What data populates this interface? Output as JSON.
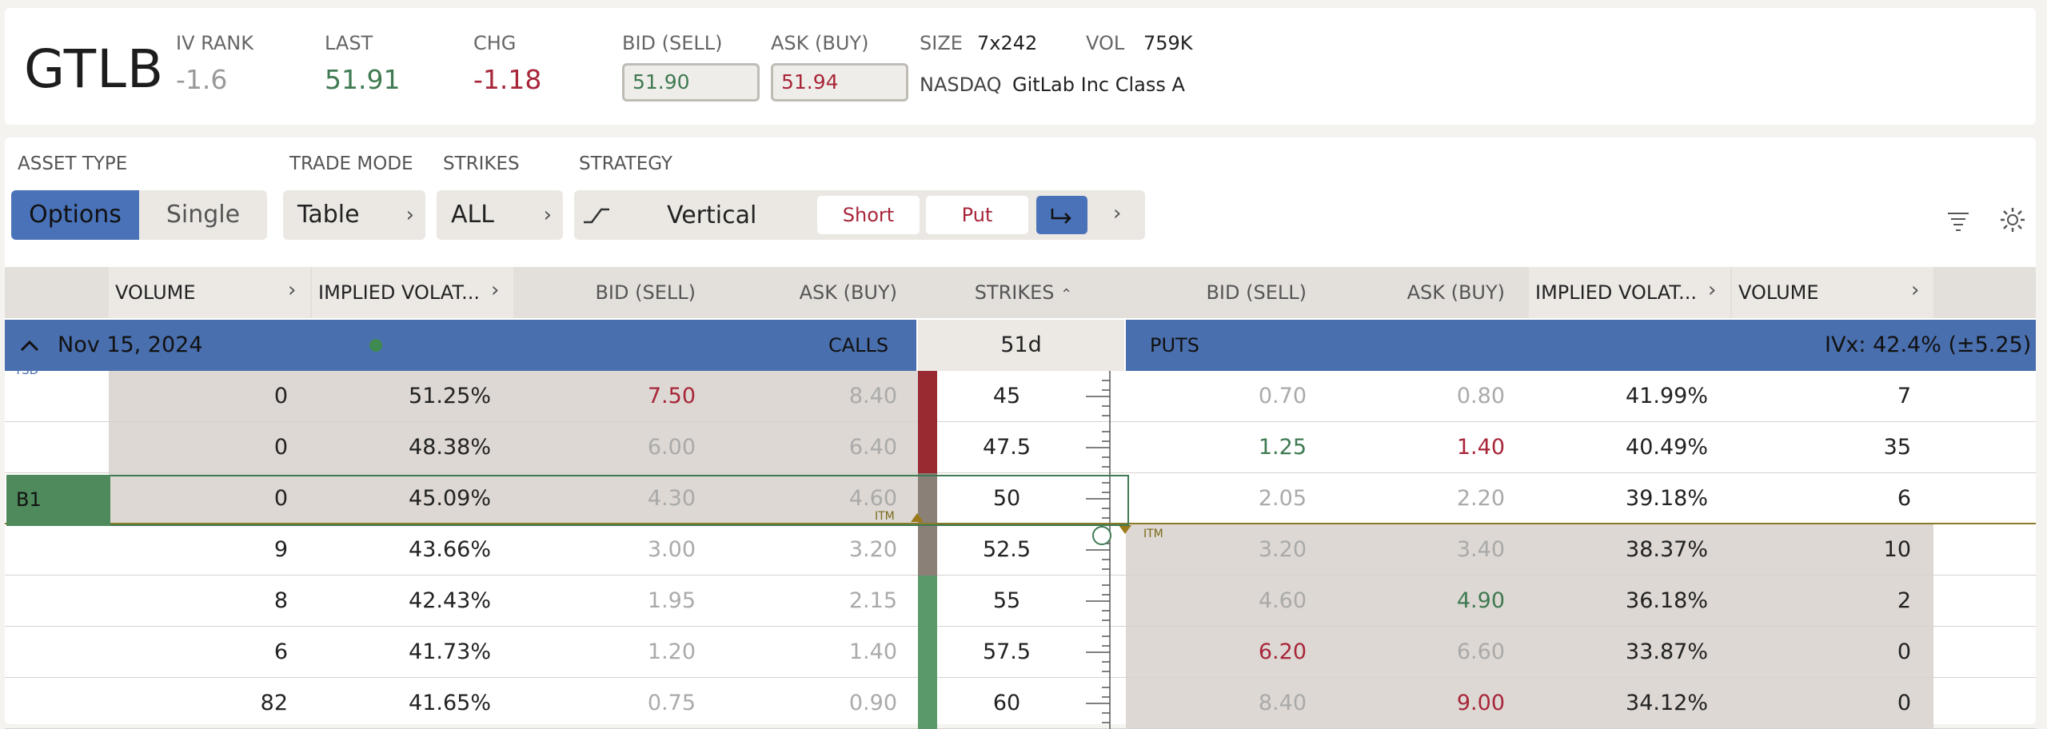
{
  "quote": {
    "symbol": "GTLB",
    "iv_rank_label": "IV RANK",
    "iv_rank": "-1.6",
    "last_label": "LAST",
    "last": "51.91",
    "chg_label": "CHG",
    "chg": "-1.18",
    "bid_label": "BID (SELL)",
    "bid": "51.90",
    "ask_label": "ASK (BUY)",
    "ask": "51.94",
    "size_label": "SIZE",
    "size": "7x242",
    "vol_label": "VOL",
    "vol": "759K",
    "exchange": "NASDAQ",
    "company": "GitLab Inc Class A"
  },
  "controls": {
    "asset_type_label": "ASSET TYPE",
    "options": "Options",
    "single": "Single",
    "trade_mode_label": "TRADE MODE",
    "trade_mode": "Table",
    "strikes_label": "STRIKES",
    "strikes": "ALL",
    "strategy_label": "STRATEGY",
    "strategy": "Vertical",
    "short": "Short",
    "put": "Put"
  },
  "headers": {
    "volume": "VOLUME",
    "iv": "IMPLIED VOLAT...",
    "bid": "BID (SELL)",
    "ask": "ASK (BUY)",
    "strikes": "STRIKES",
    "sort_icon": "caret-up-icon"
  },
  "expiry": {
    "date": "Nov 15, 2024",
    "calls": "CALLS",
    "dte": "51d",
    "puts": "PUTS",
    "ivx": "IVx: 42.4% (±5.25)",
    "tsd": "TSD"
  },
  "itm_label": "ITM",
  "position_label": "B1",
  "colors": {
    "accent": "#4a6fae",
    "buy": "#3f7a52",
    "sell": "#a8263a"
  },
  "rows": [
    {
      "cvol": "0",
      "civ": "51.25%",
      "cbid": "7.50",
      "cask": "8.40",
      "strike": "45",
      "pbid": "0.70",
      "pask": "0.80",
      "piv": "41.99%",
      "pvol": "7"
    },
    {
      "cvol": "0",
      "civ": "48.38%",
      "cbid": "6.00",
      "cask": "6.40",
      "strike": "47.5",
      "pbid": "1.25",
      "pask": "1.40",
      "piv": "40.49%",
      "pvol": "35"
    },
    {
      "cvol": "0",
      "civ": "45.09%",
      "cbid": "4.30",
      "cask": "4.60",
      "strike": "50",
      "pbid": "2.05",
      "pask": "2.20",
      "piv": "39.18%",
      "pvol": "6"
    },
    {
      "cvol": "9",
      "civ": "43.66%",
      "cbid": "3.00",
      "cask": "3.20",
      "strike": "52.5",
      "pbid": "3.20",
      "pask": "3.40",
      "piv": "38.37%",
      "pvol": "10"
    },
    {
      "cvol": "8",
      "civ": "42.43%",
      "cbid": "1.95",
      "cask": "2.15",
      "strike": "55",
      "pbid": "4.60",
      "pask": "4.90",
      "piv": "36.18%",
      "pvol": "2"
    },
    {
      "cvol": "6",
      "civ": "41.73%",
      "cbid": "1.20",
      "cask": "1.40",
      "strike": "57.5",
      "pbid": "6.20",
      "pask": "6.60",
      "piv": "33.87%",
      "pvol": "0"
    },
    {
      "cvol": "82",
      "civ": "41.65%",
      "cbid": "0.75",
      "cask": "0.90",
      "strike": "60",
      "pbid": "8.40",
      "pask": "9.00",
      "piv": "34.12%",
      "pvol": "0"
    }
  ]
}
